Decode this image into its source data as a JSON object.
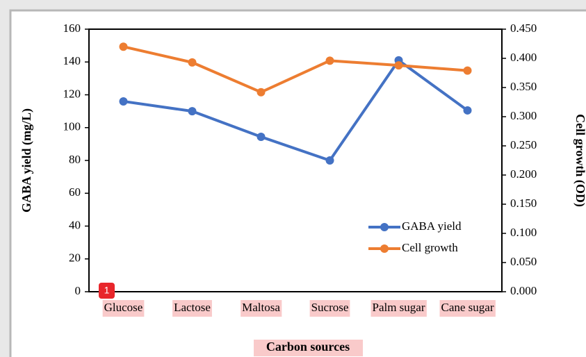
{
  "chart_data": {
    "type": "line",
    "x_label": "Carbon sources",
    "y_label": "GABA yield (mg/L)",
    "y2_label": "Cell growth (OD)",
    "categories": [
      "Glucose",
      "Lactose",
      "Maltosa",
      "Sucrose",
      "Palm sugar",
      "Cane sugar"
    ],
    "series": [
      {
        "name": "GABA yield",
        "color": "#4472c4",
        "values": [
          116,
          110,
          94.4,
          80,
          141,
          110.5
        ]
      },
      {
        "name": "Cell growth",
        "color": "#ed7d31",
        "axis": "y2",
        "values": [
          0.42,
          0.393,
          0.342,
          0.396,
          0.388,
          0.379
        ]
      }
    ],
    "ylim": [
      0,
      160
    ],
    "yticks": [
      0,
      20,
      40,
      60,
      80,
      100,
      120,
      140,
      160
    ],
    "y2lim": [
      0,
      0.45
    ],
    "y2ticks": [
      {
        "value": 0,
        "label": "0.000"
      },
      {
        "value": 0.05,
        "label": "0.050"
      },
      {
        "value": 0.1,
        "label": "0.100"
      },
      {
        "value": 0.15,
        "label": "0.150"
      },
      {
        "value": 0.2,
        "label": "0.200"
      },
      {
        "value": 0.25,
        "label": "0.250"
      },
      {
        "value": 0.3,
        "label": "0.300"
      },
      {
        "value": 0.35,
        "label": "0.350"
      },
      {
        "value": 0.4,
        "label": "0.400"
      },
      {
        "value": 0.45,
        "label": "0.450"
      }
    ],
    "legend": "lower right",
    "annotations": [
      "1"
    ]
  }
}
